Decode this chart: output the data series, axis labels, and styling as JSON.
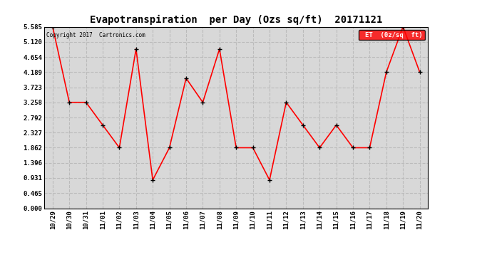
{
  "title": "Evapotranspiration  per Day (Ozs sq/ft)  20171121",
  "copyright": "Copyright 2017  Cartronics.com",
  "legend_label": "ET  (0z/sq  ft)",
  "x_labels": [
    "10/29",
    "10/30",
    "10/31",
    "11/01",
    "11/02",
    "11/03",
    "11/04",
    "11/05",
    "11/06",
    "11/07",
    "11/08",
    "11/09",
    "11/10",
    "11/11",
    "11/12",
    "11/13",
    "11/14",
    "11/15",
    "11/16",
    "11/17",
    "11/18",
    "11/19",
    "11/20"
  ],
  "y_values": [
    5.585,
    3.258,
    3.258,
    2.56,
    1.862,
    4.9,
    0.87,
    1.862,
    4.0,
    3.258,
    4.9,
    1.862,
    1.862,
    0.87,
    3.258,
    2.56,
    1.862,
    2.56,
    1.862,
    1.862,
    4.189,
    5.585,
    4.189
  ],
  "y_ticks": [
    0.0,
    0.465,
    0.931,
    1.396,
    1.862,
    2.327,
    2.792,
    3.258,
    3.723,
    4.189,
    4.654,
    5.12,
    5.585
  ],
  "y_min": 0.0,
  "y_max": 5.585,
  "line_color": "red",
  "marker": "+",
  "marker_color": "black",
  "grid_color": "#bbbbbb",
  "bg_color": "#d8d8d8",
  "title_fontsize": 10,
  "legend_bg": "red",
  "legend_text_color": "white"
}
